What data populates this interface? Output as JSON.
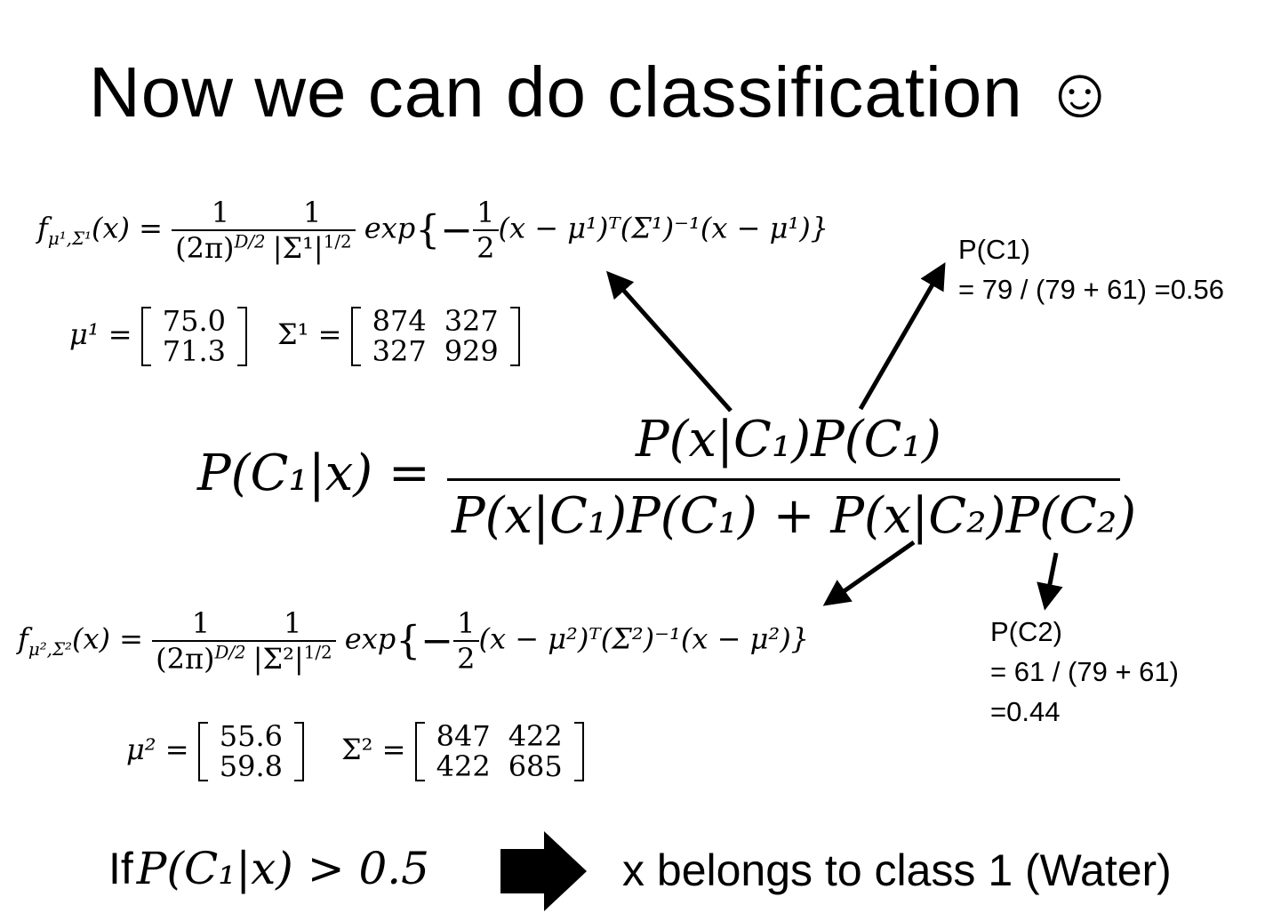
{
  "slide": {
    "title": "Now we can do classification ☺"
  },
  "class1": {
    "pdf_lhs": "f",
    "pdf_sub": "μ¹,Σ¹",
    "pdf_arg": "(x) =",
    "one": "1",
    "den1": "(2π)",
    "den1_exp": "D/2",
    "den2": "|Σ¹|",
    "den2_exp": "1/2",
    "exp_word": "exp",
    "exp_lbrace": "{−",
    "half_num": "1",
    "half_den": "2",
    "exp_body": "(x − μ¹)ᵀ(Σ¹)⁻¹(x − μ¹)}",
    "mu_label": "μ¹ =",
    "mu": [
      "75.0",
      "71.3"
    ],
    "sigma_label": "Σ¹ =",
    "sigma": [
      "874",
      "327",
      "327",
      "929"
    ]
  },
  "class2": {
    "pdf_lhs": "f",
    "pdf_sub": "μ²,Σ²",
    "pdf_arg": "(x) =",
    "one": "1",
    "den1": "(2π)",
    "den1_exp": "D/2",
    "den2": "|Σ²|",
    "den2_exp": "1/2",
    "exp_word": "exp",
    "exp_lbrace": "{−",
    "half_num": "1",
    "half_den": "2",
    "exp_body": "(x − μ²)ᵀ(Σ²)⁻¹(x − μ²)}",
    "mu_label": "μ² =",
    "mu": [
      "55.6",
      "59.8"
    ],
    "sigma_label": "Σ² =",
    "sigma": [
      "847",
      "422",
      "422",
      "685"
    ]
  },
  "bayes": {
    "lhs": "P(C₁|x)  =",
    "numerator": "P(x|C₁)P(C₁)",
    "denominator": "P(x|C₁)P(C₁) + P(x|C₂)P(C₂)"
  },
  "notes": {
    "pc1_line1": "P(C1)",
    "pc1_line2": "= 79 / (79 + 61) =0.56",
    "pc2_line1": "P(C2)",
    "pc2_line2": "= 61 / (79 + 61)",
    "pc2_line3": "=0.44"
  },
  "rule": {
    "if_word": "If",
    "condition": "P(C₁|x) > 0.5",
    "result": "x belongs to class 1 (Water)"
  }
}
